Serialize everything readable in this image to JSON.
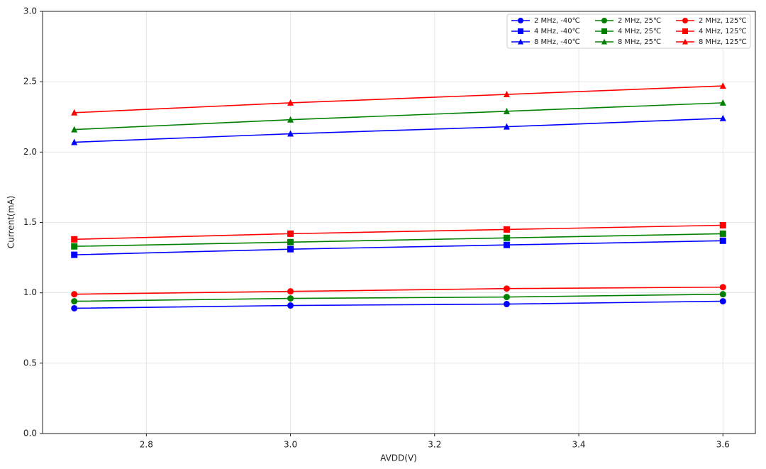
{
  "chart_data": {
    "type": "line",
    "xlabel": "AVDD(V)",
    "ylabel": "Current(mA)",
    "x": [
      2.7,
      3.0,
      3.3,
      3.6
    ],
    "xlim": [
      2.656,
      3.645
    ],
    "xticks": [
      2.8,
      {
        "value": 3,
        "label": "3.0"
      },
      3.2,
      3.4,
      3.6
    ],
    "ylim": [
      0,
      3
    ],
    "yticks": [
      {
        "value": 0,
        "label": "0.0"
      },
      0.5,
      {
        "value": 1,
        "label": "1.0"
      },
      1.5,
      {
        "value": 2,
        "label": "2.0"
      },
      2.5,
      {
        "value": 3,
        "label": "3.0"
      }
    ],
    "grid": true,
    "legend": "upper right",
    "series": [
      {
        "name": "2 MHz, -40℃",
        "color": "#0000ff",
        "marker": "circle",
        "values": [
          0.89,
          0.91,
          0.92,
          0.94
        ]
      },
      {
        "name": "4 MHz, -40℃",
        "color": "#0000ff",
        "marker": "square",
        "values": [
          1.27,
          1.31,
          1.34,
          1.37
        ]
      },
      {
        "name": "8 MHz, -40℃",
        "color": "#0000ff",
        "marker": "triangle",
        "values": [
          2.07,
          2.13,
          2.18,
          2.24
        ]
      },
      {
        "name": "2 MHz, 25℃",
        "color": "#008000",
        "marker": "circle",
        "values": [
          0.94,
          0.96,
          0.97,
          0.99
        ]
      },
      {
        "name": "4 MHz, 25℃",
        "color": "#008000",
        "marker": "square",
        "values": [
          1.33,
          1.36,
          1.39,
          1.42
        ]
      },
      {
        "name": "8 MHz, 25℃",
        "color": "#008000",
        "marker": "triangle",
        "values": [
          2.16,
          2.23,
          2.29,
          2.35
        ]
      },
      {
        "name": "2 MHz, 125℃",
        "color": "#ff0000",
        "marker": "circle",
        "values": [
          0.99,
          1.01,
          1.03,
          1.04
        ]
      },
      {
        "name": "4 MHz, 125℃",
        "color": "#ff0000",
        "marker": "square",
        "values": [
          1.38,
          1.42,
          1.45,
          1.48
        ]
      },
      {
        "name": "8 MHz, 125℃",
        "color": "#ff0000",
        "marker": "triangle",
        "values": [
          2.28,
          2.35,
          2.41,
          2.47
        ]
      }
    ]
  }
}
